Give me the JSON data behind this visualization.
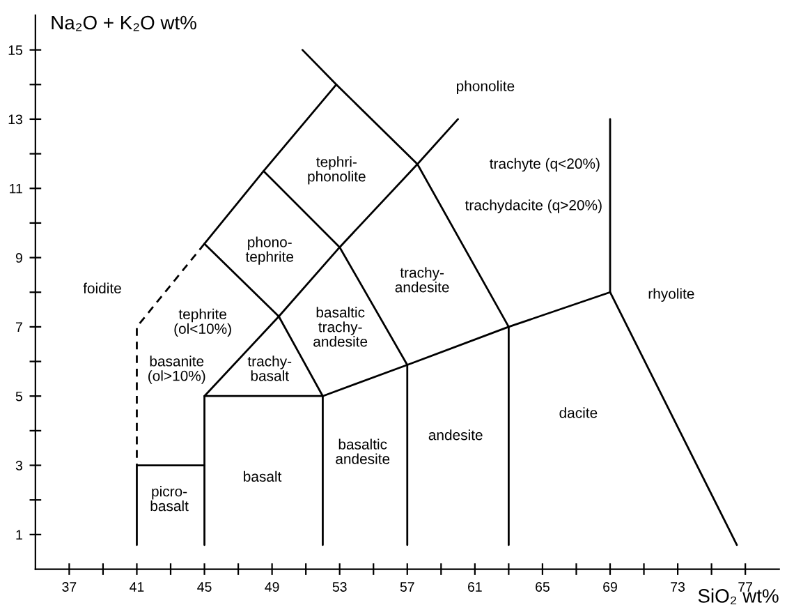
{
  "chart_data": {
    "type": "line",
    "xlabel": "SiO₂ wt%",
    "ylabel": "Na₂O + K₂O wt%",
    "xlim": [
      35,
      79
    ],
    "ylim": [
      0,
      16
    ],
    "xticks": [
      37,
      {
        "value": 39,
        "label": null
      },
      41,
      {
        "value": 43,
        "label": null
      },
      45,
      {
        "value": 47,
        "label": null
      },
      49,
      {
        "value": 51,
        "label": null
      },
      53,
      {
        "value": 55,
        "label": null
      },
      57,
      {
        "value": 59,
        "label": null
      },
      61,
      {
        "value": 63,
        "label": null
      },
      65,
      {
        "value": 67,
        "label": null
      },
      69,
      {
        "value": 71,
        "label": null
      },
      73,
      {
        "value": 75,
        "label": null
      },
      77
    ],
    "yticks": [
      1,
      {
        "value": 2,
        "label": null
      },
      3,
      {
        "value": 4,
        "label": null
      },
      5,
      {
        "value": 6,
        "label": null
      },
      7,
      {
        "value": 8,
        "label": null
      },
      9,
      {
        "value": 10,
        "label": null
      },
      11,
      {
        "value": 12,
        "label": null
      },
      13,
      {
        "value": 14,
        "label": null
      },
      15
    ],
    "grid": false,
    "legend": false,
    "marker": "none",
    "series": [
      {
        "color": "#000000",
        "line_style": "solid",
        "x": [
          41,
          41,
          45
        ],
        "values": [
          0.7,
          3,
          3
        ]
      },
      {
        "color": "#000000",
        "line_style": "solid",
        "x": [
          45,
          45,
          52,
          52
        ],
        "values": [
          0.7,
          5,
          5,
          0.7
        ]
      },
      {
        "color": "#000000",
        "line_style": "solid",
        "x": [
          52,
          57,
          63,
          69,
          76.5
        ],
        "values": [
          5,
          5.9,
          7,
          8,
          0.7
        ]
      },
      {
        "color": "#000000",
        "line_style": "solid",
        "x": [
          57,
          57
        ],
        "values": [
          0.7,
          5.9
        ]
      },
      {
        "color": "#000000",
        "line_style": "solid",
        "x": [
          63,
          63
        ],
        "values": [
          0.7,
          7
        ]
      },
      {
        "color": "#000000",
        "line_style": "solid",
        "x": [
          69,
          69
        ],
        "values": [
          8,
          13
        ]
      },
      {
        "color": "#000000",
        "line_style": "solid",
        "x": [
          45,
          49.4,
          53,
          57.6,
          60
        ],
        "values": [
          5,
          7.3,
          9.3,
          11.7,
          13
        ]
      },
      {
        "color": "#000000",
        "line_style": "solid",
        "x": [
          52,
          49.4,
          45
        ],
        "values": [
          5,
          7.3,
          9.4
        ]
      },
      {
        "color": "#000000",
        "line_style": "dashed",
        "x": [
          45,
          41,
          41
        ],
        "values": [
          9.4,
          7,
          3
        ]
      },
      {
        "color": "#000000",
        "line_style": "solid",
        "x": [
          57,
          53,
          48.5
        ],
        "values": [
          5.9,
          9.3,
          11.5
        ]
      },
      {
        "color": "#000000",
        "line_style": "solid",
        "x": [
          45,
          48.5,
          52.8
        ],
        "values": [
          9.4,
          11.5,
          14
        ]
      },
      {
        "color": "#000000",
        "line_style": "solid",
        "x": [
          50.8,
          52.8,
          57.6,
          63
        ],
        "values": [
          15,
          14,
          11.7,
          7
        ]
      }
    ],
    "annotations": [
      "foidite",
      "tephrite\n(ol<10%)",
      "basanite\n(ol>10%)",
      "trachy-\nbasalt",
      "basaltic\ntrachy-\nandesite",
      "phono-\ntephrite",
      "tephri-\nphonolite",
      "phonolite",
      "trachy-\nandesite",
      "trachyte (q<20%)",
      "trachydacite (q>20%)",
      "rhyolite",
      "dacite",
      "andesite",
      "basaltic\nandesite",
      "basalt",
      "picro-\nbasalt"
    ]
  }
}
